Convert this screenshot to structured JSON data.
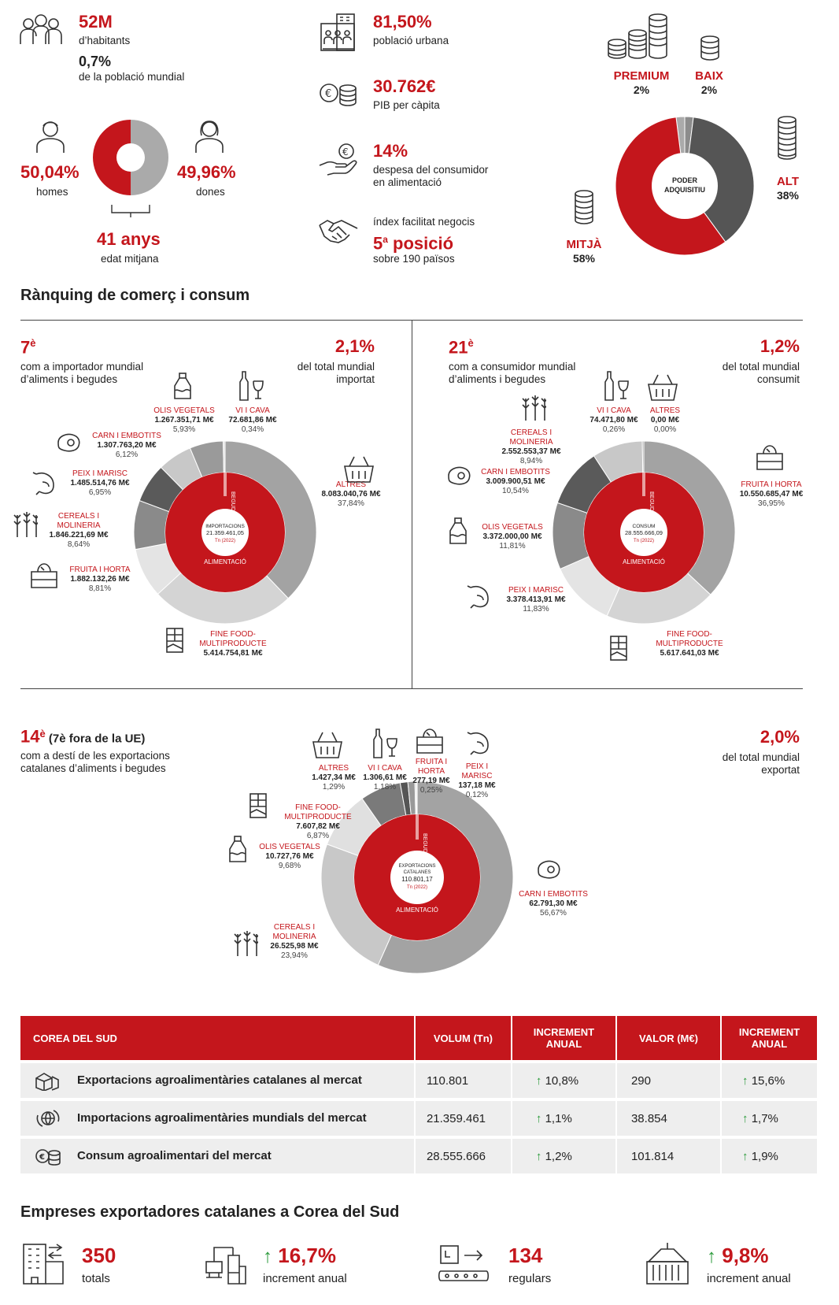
{
  "demographics": {
    "population_value": "52M",
    "population_label": "d’habitants",
    "world_share_value": "0,7%",
    "world_share_label": "de la població mundial",
    "men_value": "50,04%",
    "men_label": "homes",
    "women_value": "49,96%",
    "women_label": "dones",
    "men_share": 50.04,
    "women_share": 49.96,
    "age_value": "41 anys",
    "age_label": "edat mitjana"
  },
  "economy": {
    "urban_value": "81,50%",
    "urban_label": "població urbana",
    "gdp_value": "30.762€",
    "gdp_label": "PIB per càpita",
    "food_spend_value": "14%",
    "food_spend_label_1": "despesa del consumidor",
    "food_spend_label_2": "en alimentació",
    "business_label": "índex facilitat negocis",
    "business_value": "5",
    "business_sup": "a",
    "business_value_suffix": " posició",
    "business_sub": "sobre 190 països"
  },
  "purchasing": {
    "center_1": "PODER",
    "center_2": "ADQUISITIU",
    "segments": [
      {
        "name": "PREMIUM",
        "pct": "2%",
        "value": 2
      },
      {
        "name": "BAIX",
        "pct": "2%",
        "value": 2
      },
      {
        "name": "ALT",
        "pct": "38%",
        "value": 38
      },
      {
        "name": "MITJÀ",
        "pct": "58%",
        "value": 58
      }
    ]
  },
  "ranking_title": "Rànquing de comerç i consum",
  "import_panel": {
    "rank": "7",
    "rank_sup": "è",
    "desc_1": "com a importador mundial",
    "desc_2": "d’aliments i begudes",
    "share_value": "2,1%",
    "share_1": "del total mundial",
    "share_2": "importat"
  },
  "consume_panel": {
    "rank": "21",
    "rank_sup": "è",
    "desc_1": "com a consumidor mundial",
    "desc_2": "d’aliments i begudes",
    "share_value": "1,2%",
    "share_1": "del total mundial",
    "share_2": "consumit"
  },
  "export_panel": {
    "rank": "14",
    "rank_sup": "è",
    "rank_note": " (7è fora de la UE)",
    "desc_1": "com a destí de les exportacions",
    "desc_2": "catalanes d’aliments i begudes",
    "share_value": "2,0%",
    "share_1": "del total mundial",
    "share_2": "exportat"
  },
  "chart_data": [
    {
      "type": "pie",
      "title": "",
      "center_1": "IMPORTACIONS",
      "center_2": "21.359.461,05",
      "center_3": "Tn (2022)",
      "inner_labels": [
        "BEGUDES",
        "ALIMENTACIÓ"
      ],
      "categories": [
        "ALTRES",
        "FINE FOOD-MULTIPRODUCTE",
        "FRUITA I HORTA",
        "CEREALS I MOLINERIA",
        "PEIX I MARISC",
        "CARN I EMBOTITS",
        "OLIS VEGETALS",
        "VI I CAVA"
      ],
      "values": [
        37.84,
        25.35,
        8.81,
        8.64,
        6.95,
        6.12,
        5.93,
        0.34
      ],
      "value_labels": [
        "8.083.040,76 M€",
        "5.414.754,81 M€",
        "1.882.132,26 M€",
        "1.846.221,69 M€",
        "1.485.514,76 M€",
        "1.307.763,20 M€",
        "1.267.351,71 M€",
        "72.681,86 M€"
      ],
      "pct_labels": [
        "37,84%",
        "",
        "8,81%",
        "8,64%",
        "6,95%",
        "6,12%",
        "5,93%",
        "0,34%"
      ]
    },
    {
      "type": "pie",
      "title": "",
      "center_1": "CONSUM",
      "center_2": "28.555.666,09",
      "center_3": "Tn (2022)",
      "inner_labels": [
        "BEGUDES",
        "ALIMENTACIÓ"
      ],
      "categories": [
        "FRUITA I HORTA",
        "FINE FOOD-MULTIPRODUCTE",
        "PEIX I MARISC",
        "OLIS VEGETALS",
        "CARN I EMBOTITS",
        "CEREALS I MOLINERIA",
        "VI I CAVA",
        "ALTRES"
      ],
      "values": [
        36.95,
        19.67,
        11.83,
        11.81,
        10.54,
        8.94,
        0.26,
        0.0
      ],
      "value_labels": [
        "10.550.685,47 M€",
        "5.617.641,03 M€",
        "3.378.413,91 M€",
        "3.372.000,00 M€",
        "3.009.900,51 M€",
        "2.552.553,37 M€",
        "74.471,80 M€",
        "0,00 M€"
      ],
      "pct_labels": [
        "36,95%",
        "",
        "11,83%",
        "11,81%",
        "10,54%",
        "8,94%",
        "0,26%",
        "0,00%"
      ]
    },
    {
      "type": "pie",
      "title": "",
      "center_1": "EXPORTACIONS",
      "center_2": "CATALANES",
      "center_3": "110.801,17",
      "center_4": "Tn (2022)",
      "inner_labels": [
        "BEGUDES",
        "ALIMENTACIÓ"
      ],
      "categories": [
        "CARN I EMBOTITS",
        "CEREALS I MOLINERIA",
        "OLIS VEGETALS",
        "FINE FOOD-MULTIPRODUCTE",
        "ALTRES",
        "VI I CAVA",
        "FRUITA I HORTA",
        "PEIX I MARISC"
      ],
      "values": [
        56.67,
        23.94,
        9.68,
        6.87,
        1.29,
        1.18,
        0.25,
        0.12
      ],
      "value_labels": [
        "62.791,30 M€",
        "26.525,98 M€",
        "10.727,76 M€",
        "7.607,82 M€",
        "1.427,34 M€",
        "1.306,61 M€",
        "277,19 M€",
        "137,18 M€"
      ],
      "pct_labels": [
        "56,67%",
        "23,94%",
        "9,68%",
        "6,87%",
        "1,29%",
        "1,18%",
        "0,25%",
        "0,12%"
      ]
    }
  ],
  "table": {
    "headers": [
      "COREA DEL SUD",
      "VOLUM (Tn)",
      "INCREMENT ANUAL",
      "VALOR (M€)",
      "INCREMENT ANUAL"
    ],
    "rows": [
      {
        "icon": "boxes-icon",
        "label": "Exportacions agroalimentàries catalanes al mercat",
        "volume": "110.801",
        "vol_inc": "10,8%",
        "value": "290",
        "val_inc": "15,6%"
      },
      {
        "icon": "globe-icon",
        "label": "Importacions agroalimentàries mundials del mercat",
        "volume": "21.359.461",
        "vol_inc": "1,1%",
        "value": "38.854",
        "val_inc": "1,7%"
      },
      {
        "icon": "coins-icon",
        "label": "Consum agroalimentari del mercat",
        "volume": "28.555.666",
        "vol_inc": "1,2%",
        "value": "101.814",
        "val_inc": "1,9%"
      }
    ]
  },
  "companies": {
    "title": "Empreses exportadores catalanes a Corea del Sud",
    "total_value": "350",
    "total_label": "totals",
    "total_inc": "16,7%",
    "total_inc_label": "increment anual",
    "regular_value": "134",
    "regular_label": "regulars",
    "regular_inc": "9,8%",
    "regular_inc_label": "increment anual"
  },
  "colors": {
    "red": "#c4161c",
    "dark": "#555555",
    "mid": "#8c8c8c",
    "light": "#c8c8c8",
    "lighter": "#dcdcdc",
    "green": "#2a9a3a"
  }
}
